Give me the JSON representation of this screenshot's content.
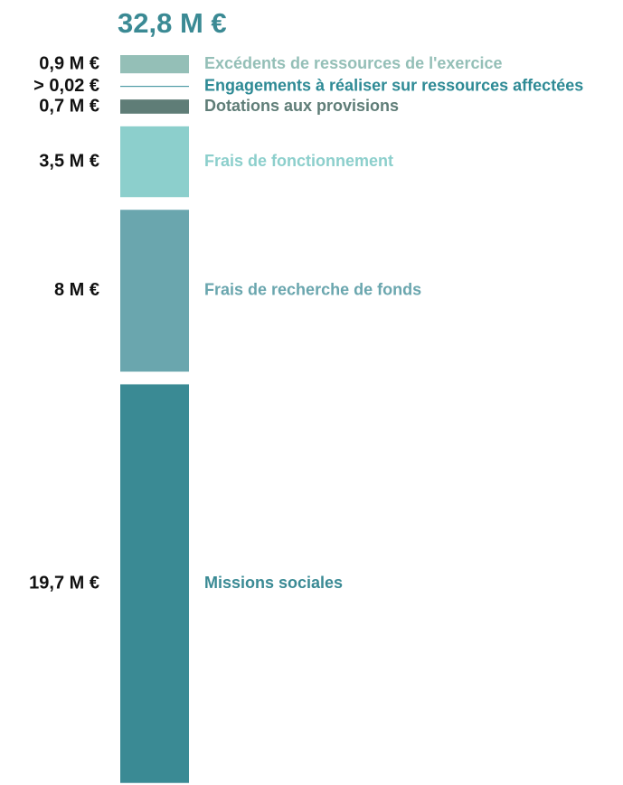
{
  "chart_data": {
    "type": "stacked-column",
    "title": "32,8 M €",
    "categories": [
      "Excédents de ressources de l'exercice",
      "Engagements à réaliser sur ressources affectées",
      "Dotations aux provisions",
      "Frais de fonctionnement",
      "Frais de recherche de fonds",
      "Missions sociales"
    ],
    "values": [
      0.9,
      0.02,
      0.7,
      3.5,
      8,
      19.7
    ],
    "value_labels": [
      "0,9 M €",
      "> 0,02 €",
      "0,7 M €",
      "3,5 M €",
      "8 M €",
      "19,7 M €"
    ],
    "colors": [
      "#94bfb7",
      "#2e8a95",
      "#5f7d77",
      "#8ccfcc",
      "#6aa6ae",
      "#3a8a94"
    ],
    "title_color": "#3b8a94"
  }
}
